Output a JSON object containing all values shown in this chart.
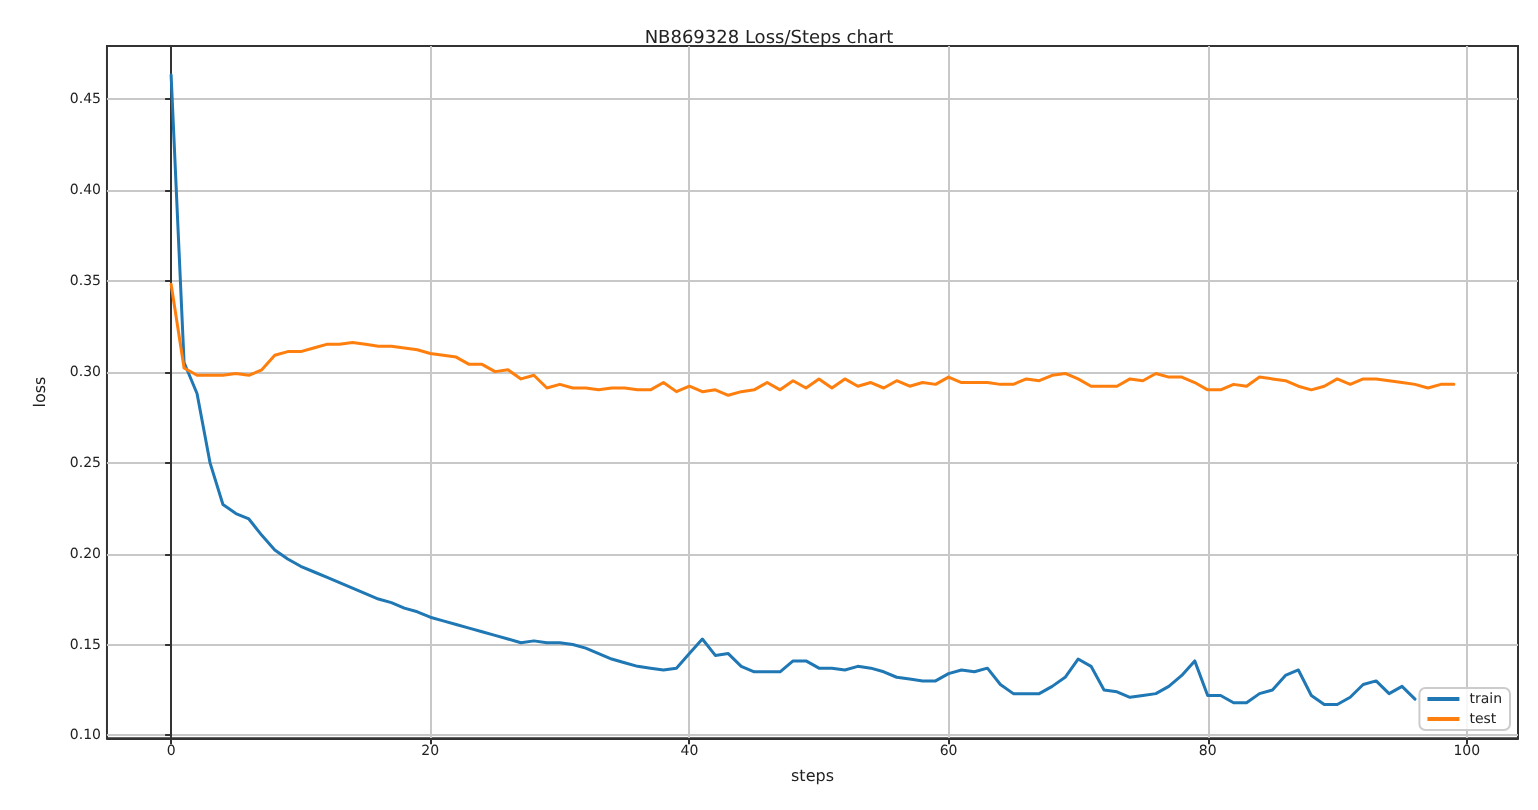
{
  "chart_data": {
    "type": "line",
    "title": "NB869328 Loss/Steps chart",
    "xlabel": "steps",
    "ylabel": "loss",
    "x": [
      0,
      1,
      2,
      3,
      4,
      5,
      6,
      7,
      8,
      9,
      10,
      11,
      12,
      13,
      14,
      15,
      16,
      17,
      18,
      19,
      20,
      21,
      22,
      23,
      24,
      25,
      26,
      27,
      28,
      29,
      30,
      31,
      32,
      33,
      34,
      35,
      36,
      37,
      38,
      39,
      40,
      41,
      42,
      43,
      44,
      45,
      46,
      47,
      48,
      49,
      50,
      51,
      52,
      53,
      54,
      55,
      56,
      57,
      58,
      59,
      60,
      61,
      62,
      63,
      64,
      65,
      66,
      67,
      68,
      69,
      70,
      71,
      72,
      73,
      74,
      75,
      76,
      77,
      78,
      79,
      80,
      81,
      82,
      83,
      84,
      85,
      86,
      87,
      88,
      89,
      90,
      91,
      92,
      93,
      94,
      95,
      96,
      97,
      98,
      99
    ],
    "series": [
      {
        "name": "train",
        "color": "#1f77b4",
        "values": [
          0.463,
          0.305,
          0.288,
          0.25,
          0.227,
          0.222,
          0.219,
          0.21,
          0.202,
          0.197,
          0.193,
          0.19,
          0.187,
          0.184,
          0.181,
          0.178,
          0.175,
          0.173,
          0.17,
          0.168,
          0.165,
          0.163,
          0.161,
          0.159,
          0.157,
          0.155,
          0.153,
          0.151,
          0.152,
          0.151,
          0.151,
          0.15,
          0.148,
          0.145,
          0.142,
          0.14,
          0.138,
          0.137,
          0.136,
          0.137,
          0.145,
          0.153,
          0.144,
          0.145,
          0.138,
          0.135,
          0.135,
          0.135,
          0.141,
          0.141,
          0.137,
          0.137,
          0.136,
          0.138,
          0.137,
          0.135,
          0.132,
          0.131,
          0.13,
          0.13,
          0.134,
          0.136,
          0.135,
          0.137,
          0.128,
          0.123,
          0.123,
          0.123,
          0.127,
          0.132,
          0.142,
          0.138,
          0.125,
          0.124,
          0.121,
          0.122,
          0.123,
          0.127,
          0.133,
          0.141,
          0.122,
          0.122,
          0.118,
          0.118,
          0.123,
          0.125,
          0.133,
          0.136,
          0.122,
          0.117,
          0.117,
          0.121,
          0.128,
          0.13,
          0.123,
          0.127,
          0.12,
          null,
          null,
          null
        ]
      },
      {
        "name": "test",
        "color": "#ff7f0e",
        "values": [
          0.348,
          0.302,
          0.298,
          0.298,
          0.298,
          0.299,
          0.298,
          0.301,
          0.309,
          0.311,
          0.311,
          0.313,
          0.315,
          0.315,
          0.316,
          0.315,
          0.314,
          0.314,
          0.313,
          0.312,
          0.31,
          0.309,
          0.308,
          0.304,
          0.304,
          0.3,
          0.301,
          0.296,
          0.298,
          0.291,
          0.293,
          0.291,
          0.291,
          0.29,
          0.291,
          0.291,
          0.29,
          0.29,
          0.294,
          0.289,
          0.292,
          0.289,
          0.29,
          0.287,
          0.289,
          0.29,
          0.294,
          0.29,
          0.295,
          0.291,
          0.296,
          0.291,
          0.296,
          0.292,
          0.294,
          0.291,
          0.295,
          0.292,
          0.294,
          0.293,
          0.297,
          0.294,
          0.294,
          0.294,
          0.293,
          0.293,
          0.296,
          0.295,
          0.298,
          0.299,
          0.296,
          0.292,
          0.292,
          0.292,
          0.296,
          0.295,
          0.299,
          0.297,
          0.297,
          0.294,
          0.29,
          0.29,
          0.293,
          0.292,
          0.297,
          0.296,
          0.295,
          0.292,
          0.29,
          0.292,
          0.296,
          0.293,
          0.296,
          0.296,
          0.295,
          0.294,
          0.293,
          0.291,
          0.293,
          0.293
        ]
      }
    ],
    "xlim": [
      -4.95,
      103.95
    ],
    "xticks": [
      0,
      20,
      40,
      60,
      80,
      100
    ],
    "ylim": [
      0.0985,
      0.479
    ],
    "yticks": [
      {
        "value": 0.1,
        "label": "0.10"
      },
      {
        "value": 0.15,
        "label": "0.15"
      },
      {
        "value": 0.2,
        "label": "0.20"
      },
      {
        "value": 0.25,
        "label": "0.25"
      },
      {
        "value": 0.3,
        "label": "0.30"
      },
      {
        "value": 0.35,
        "label": "0.35"
      },
      {
        "value": 0.4,
        "label": "0.40"
      },
      {
        "value": 0.45,
        "label": "0.45"
      }
    ],
    "grid": true,
    "legend": "bottom right",
    "marker": "none",
    "line_style": "solid"
  }
}
